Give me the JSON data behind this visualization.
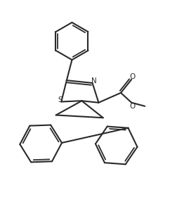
{
  "bg_color": "#ffffff",
  "line_color": "#2a2a2a",
  "line_width": 1.5,
  "figsize": [
    2.53,
    2.94
  ],
  "dpi": 100,
  "xlim": [
    0,
    10
  ],
  "ylim": [
    0,
    11.6
  ],
  "label_N": "N",
  "label_S": "S",
  "label_O1": "O",
  "label_O2": "O",
  "fontsize": 7.5
}
